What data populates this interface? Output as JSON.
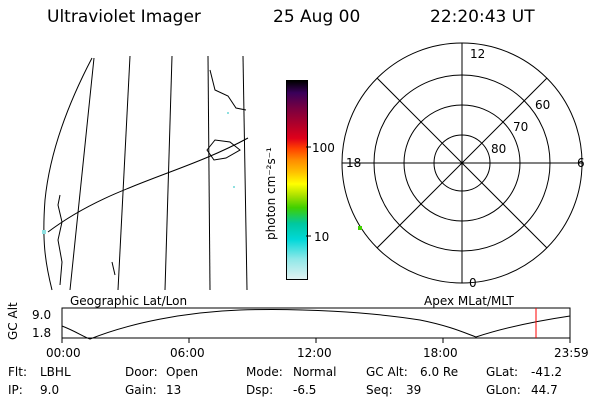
{
  "header": {
    "instrument": "Ultraviolet Imager",
    "date": "25 Aug 00",
    "time": "22:20:43 UT"
  },
  "geographic_panel": {
    "caption": "Geographic Lat/Lon"
  },
  "colorbar": {
    "unit_label": "photon cm⁻²s⁻¹",
    "ticks": [
      "100",
      "10"
    ],
    "colors": [
      "#000000",
      "#3a005a",
      "#7a0040",
      "#b0002a",
      "#e0001a",
      "#ff4000",
      "#ff8c00",
      "#ffc000",
      "#ffff00",
      "#a8e000",
      "#40d000",
      "#00c8a0",
      "#00d8d8",
      "#90e8e8",
      "#e0f2f2"
    ]
  },
  "polar_panel": {
    "caption": "Apex MLat/MLT",
    "mlt_labels": {
      "top": "12",
      "bottom": "0",
      "left": "18",
      "right": "6"
    },
    "lat_labels": [
      "60",
      "70",
      "80"
    ]
  },
  "timeline": {
    "ylabel": "GC Alt",
    "yticks": [
      "9.0",
      "1.8"
    ],
    "xticks": [
      "00:00",
      "06:00",
      "12:00",
      "18:00",
      "23:59"
    ],
    "marker_color": "#ff0000"
  },
  "info": {
    "filter_label": "Flt:",
    "filter_value": "LBHL",
    "ip_label": "IP:",
    "ip_value": "9.0",
    "door_label": "Door:",
    "door_value": "Open",
    "gain_label": "Gain:",
    "gain_value": "13",
    "mode_label": "Mode:",
    "mode_value": "Normal",
    "dsp_label": "Dsp:",
    "dsp_value": "-6.5",
    "gcalt_label": "GC Alt:",
    "gcalt_value": "6.0 Re",
    "seq_label": "Seq:",
    "seq_value": "39",
    "glat_label": "GLat:",
    "glat_value": "-41.2",
    "glon_label": "GLon:",
    "glon_value": "44.7"
  }
}
